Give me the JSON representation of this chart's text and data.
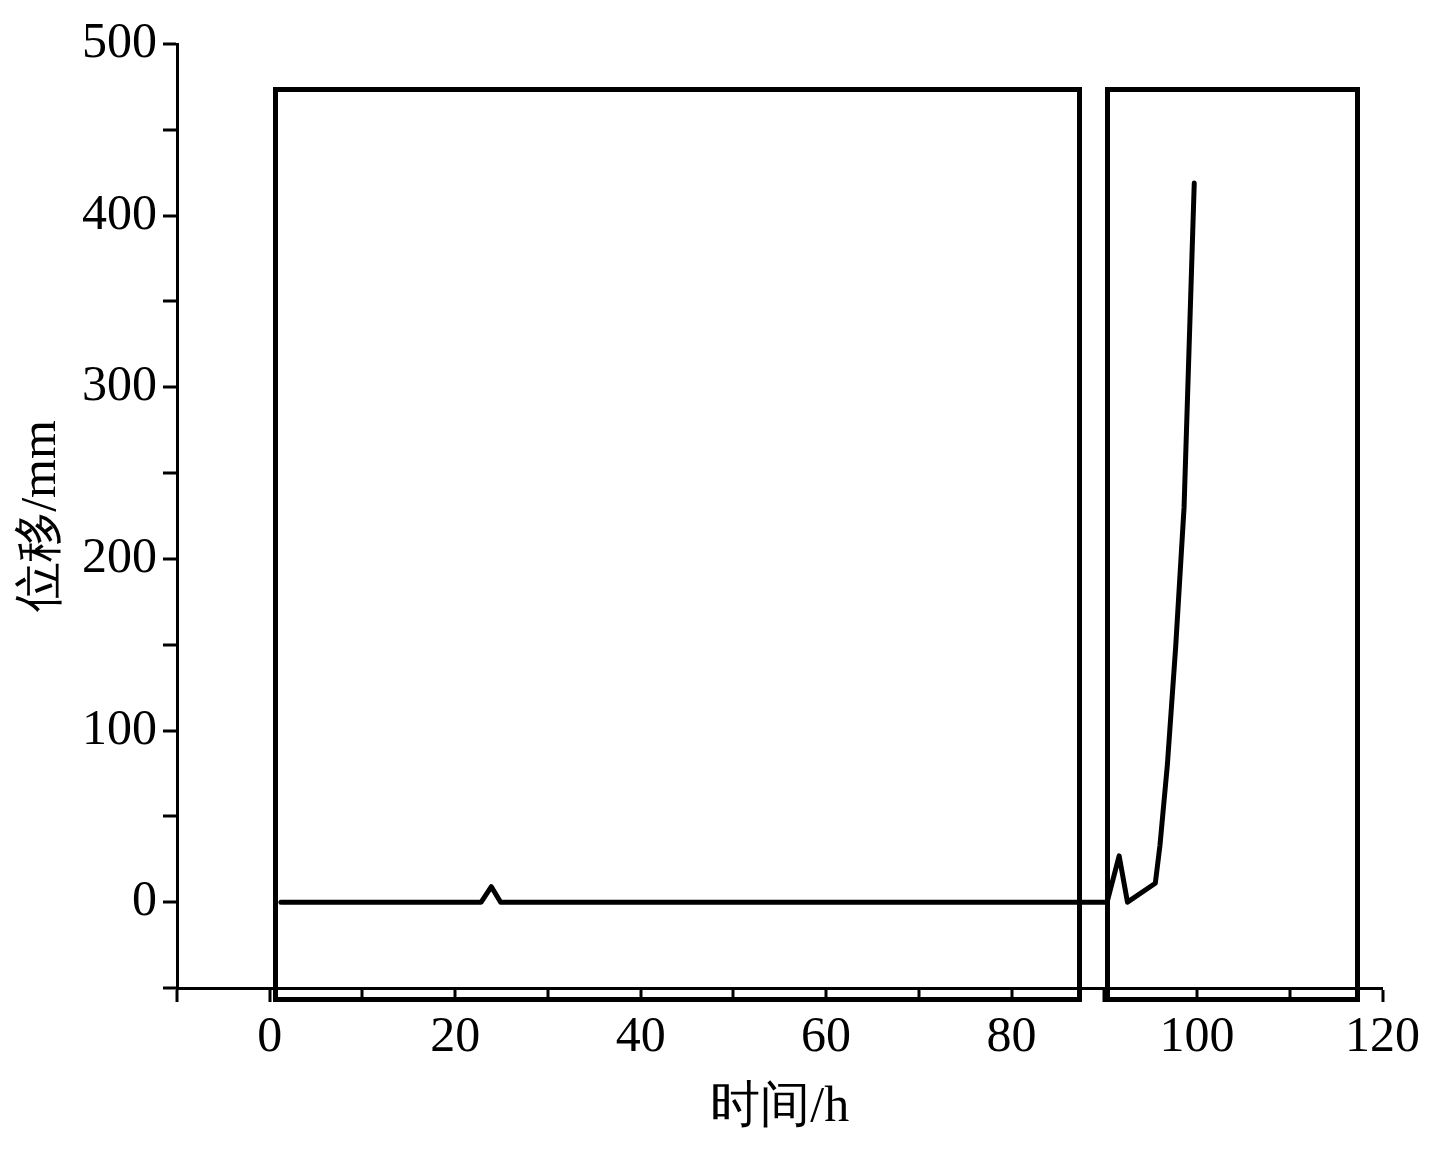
{
  "chart_data": {
    "type": "line",
    "xlabel": "时间/h",
    "ylabel": "位移/mm",
    "x": [
      1.2,
      22.8,
      23.9,
      24.9,
      40,
      60,
      80,
      90.3,
      91.6,
      92.5,
      95.5,
      96,
      96.8,
      97.7,
      98.6,
      99.7
    ],
    "series": [
      {
        "color": "#000000",
        "values": [
          0,
          0,
          9,
          0,
          0,
          0,
          0,
          0,
          27,
          0,
          11,
          33,
          80,
          149,
          230,
          419
        ]
      }
    ],
    "xlim": [
      -10,
      120
    ],
    "xticks": [
      {
        "value": -10,
        "label": null
      },
      0,
      {
        "value": 10,
        "label": null
      },
      20,
      {
        "value": 30,
        "label": null
      },
      40,
      {
        "value": 50,
        "label": null
      },
      60,
      {
        "value": 70,
        "label": null
      },
      80,
      {
        "value": 90,
        "label": null
      },
      100,
      {
        "value": 110,
        "label": null
      },
      120
    ],
    "ylim": [
      -50,
      500
    ],
    "yticks": [
      {
        "value": -50,
        "label": null
      },
      0,
      {
        "value": 50,
        "label": null
      },
      100,
      {
        "value": 150,
        "label": null
      },
      200,
      {
        "value": 250,
        "label": null
      },
      300,
      {
        "value": 350,
        "label": null
      },
      400,
      {
        "value": 450,
        "label": null
      },
      500
    ],
    "legend": false,
    "marker": "none",
    "line_style": "solid"
  }
}
